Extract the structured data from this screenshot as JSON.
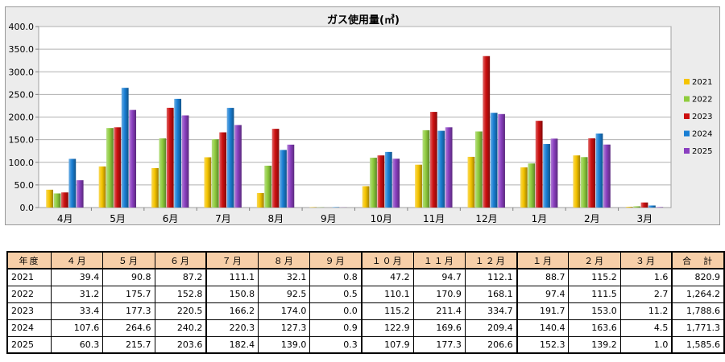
{
  "chart_data": {
    "type": "bar",
    "title": "ガス使用量(㎥)",
    "categories": [
      "4月",
      "5月",
      "6月",
      "7月",
      "8月",
      "9月",
      "10月",
      "11月",
      "12月",
      "1月",
      "2月",
      "3月"
    ],
    "ylim": [
      0,
      400
    ],
    "yticks": [
      "0.0",
      "50.0",
      "100.0",
      "150.0",
      "200.0",
      "250.0",
      "300.0",
      "350.0",
      "400.0"
    ],
    "grid": true,
    "legend_position": "right",
    "series": [
      {
        "name": "2021",
        "color": "#f5c400",
        "values": [
          39.4,
          90.8,
          87.2,
          111.1,
          32.1,
          0.8,
          47.2,
          94.7,
          112.1,
          88.7,
          115.2,
          1.6
        ]
      },
      {
        "name": "2022",
        "color": "#8fcc3e",
        "values": [
          31.2,
          175.7,
          152.8,
          150.8,
          92.5,
          0.5,
          110.1,
          170.9,
          168.1,
          97.4,
          111.5,
          2.7
        ]
      },
      {
        "name": "2023",
        "color": "#cc1010",
        "values": [
          33.4,
          177.3,
          220.5,
          166.2,
          174.0,
          0.0,
          115.2,
          211.4,
          334.7,
          191.7,
          153.0,
          11.2
        ]
      },
      {
        "name": "2024",
        "color": "#1a7fd4",
        "values": [
          107.6,
          264.6,
          240.2,
          220.3,
          127.3,
          0.9,
          122.9,
          169.6,
          209.4,
          140.4,
          163.6,
          4.5
        ]
      },
      {
        "name": "2025",
        "color": "#8a3fc0",
        "values": [
          60.3,
          215.7,
          203.6,
          182.4,
          139.0,
          0.3,
          107.9,
          177.3,
          206.6,
          152.3,
          139.2,
          1.0
        ]
      }
    ]
  },
  "table": {
    "headers": [
      "年度",
      "４月",
      "５月",
      "６月",
      "７月",
      "８月",
      "９月",
      "１０月",
      "１１月",
      "１２月",
      "１月",
      "２月",
      "３月",
      "合　計"
    ],
    "rows": [
      [
        "2021",
        "39.4",
        "90.8",
        "87.2",
        "111.1",
        "32.1",
        "0.8",
        "47.2",
        "94.7",
        "112.1",
        "88.7",
        "115.2",
        "1.6",
        "820.9"
      ],
      [
        "2022",
        "31.2",
        "175.7",
        "152.8",
        "150.8",
        "92.5",
        "0.5",
        "110.1",
        "170.9",
        "168.1",
        "97.4",
        "111.5",
        "2.7",
        "1,264.2"
      ],
      [
        "2023",
        "33.4",
        "177.3",
        "220.5",
        "166.2",
        "174.0",
        "0.0",
        "115.2",
        "211.4",
        "334.7",
        "191.7",
        "153.0",
        "11.2",
        "1,788.6"
      ],
      [
        "2024",
        "107.6",
        "264.6",
        "240.2",
        "220.3",
        "127.3",
        "0.9",
        "122.9",
        "169.6",
        "209.4",
        "140.4",
        "163.6",
        "4.5",
        "1,771.3"
      ],
      [
        "2025",
        "60.3",
        "215.7",
        "203.6",
        "182.4",
        "139.0",
        "0.3",
        "107.9",
        "177.3",
        "206.6",
        "152.3",
        "139.2",
        "1.0",
        "1,585.6"
      ]
    ]
  }
}
